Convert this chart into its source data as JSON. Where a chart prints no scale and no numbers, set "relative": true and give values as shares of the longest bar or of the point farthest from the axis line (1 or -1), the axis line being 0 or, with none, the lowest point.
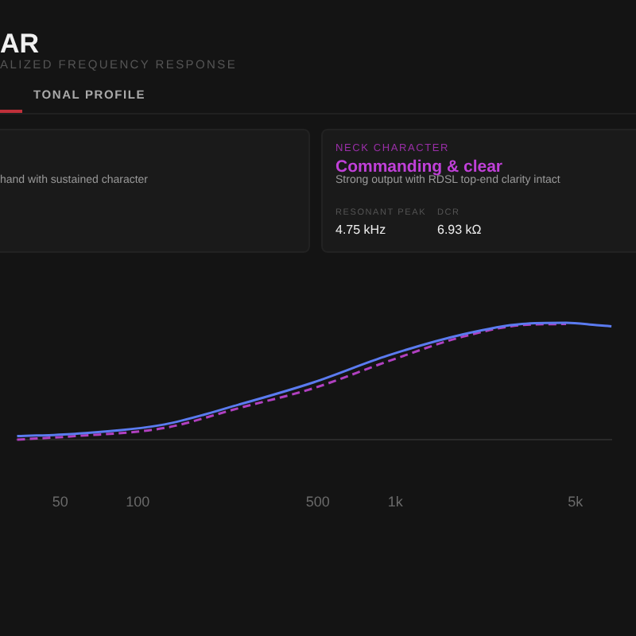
{
  "chart_data": {
    "type": "line",
    "title": "AR",
    "subtitle": "ALIZED FREQUENCY RESPONSE",
    "relative": true,
    "log": "x",
    "annotations": [
      "TONAL PROFILE",
      "hand with sustained character",
      "NECK CHARACTER",
      "Commanding & clear",
      "Strong output with RDSL top-end clarity intact",
      "RESONANT PEAK",
      "4.75 kHz",
      "DCR",
      "6.93 kΩ"
    ],
    "xlim": [
      34,
      6900
    ],
    "xticks": [
      50,
      100,
      500,
      {
        "value": 1000,
        "label": "1k"
      },
      {
        "value": 5000,
        "label": "5k"
      }
    ],
    "x": [
      34,
      57,
      127,
      247,
      481,
      936,
      1821,
      3100,
      4600,
      6050,
      6900
    ],
    "series": [
      {
        "color": "#5b7bf0",
        "line_style": "solid",
        "values": [
          0.03,
          0.05,
          0.13,
          0.3,
          0.49,
          0.72,
          0.9,
          0.99,
          1,
          0.98,
          0.97
        ]
      },
      {
        "color": "#b040c0",
        "line_style": "dashed",
        "values": [
          0,
          0.03,
          0.1,
          0.27,
          0.44,
          0.67,
          0.88,
          0.98,
          0.99,
          null,
          null
        ]
      }
    ],
    "grid": false,
    "legend": false,
    "marker": "none"
  }
}
